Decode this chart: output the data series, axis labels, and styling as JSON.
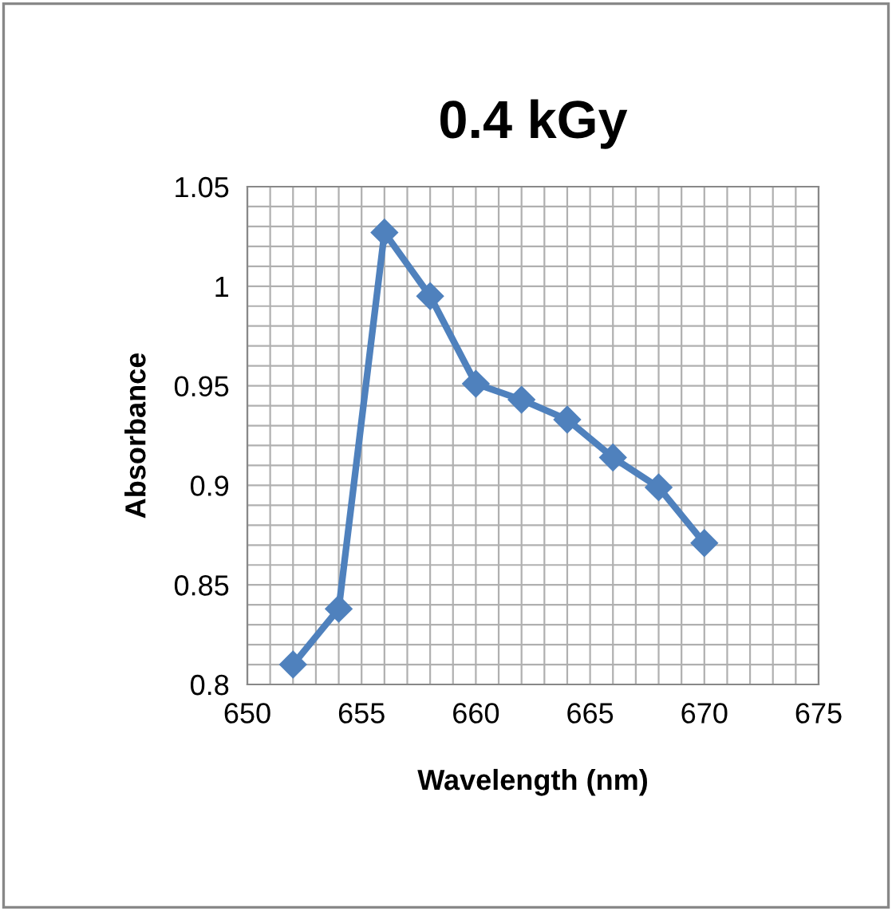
{
  "chart_data": {
    "type": "line",
    "title": "0.4 kGy",
    "xlabel": "Wavelength (nm)",
    "ylabel": "Absorbance",
    "x": [
      652,
      654,
      656,
      658,
      660,
      662,
      664,
      666,
      668,
      670
    ],
    "series": [
      {
        "color": "#4f81bd",
        "values": [
          0.81,
          0.838,
          1.027,
          0.995,
          0.951,
          0.943,
          0.933,
          0.914,
          0.899,
          0.871
        ]
      }
    ],
    "marker": "diamond",
    "line_style": "solid",
    "grid": true,
    "xlim": [
      650,
      675
    ],
    "ylim": [
      0.8,
      1.05
    ],
    "xticks": [
      650,
      {
        "value": 651,
        "label": null
      },
      {
        "value": 652,
        "label": null
      },
      {
        "value": 653,
        "label": null
      },
      {
        "value": 654,
        "label": null
      },
      655,
      {
        "value": 656,
        "label": null
      },
      {
        "value": 657,
        "label": null
      },
      {
        "value": 658,
        "label": null
      },
      {
        "value": 659,
        "label": null
      },
      660,
      {
        "value": 661,
        "label": null
      },
      {
        "value": 662,
        "label": null
      },
      {
        "value": 663,
        "label": null
      },
      {
        "value": 664,
        "label": null
      },
      665,
      {
        "value": 666,
        "label": null
      },
      {
        "value": 667,
        "label": null
      },
      {
        "value": 668,
        "label": null
      },
      {
        "value": 669,
        "label": null
      },
      670,
      {
        "value": 671,
        "label": null
      },
      {
        "value": 672,
        "label": null
      },
      {
        "value": 673,
        "label": null
      },
      {
        "value": 674,
        "label": null
      },
      675
    ],
    "yticks": [
      0.8,
      {
        "value": 0.81,
        "label": null
      },
      {
        "value": 0.82,
        "label": null
      },
      {
        "value": 0.83,
        "label": null
      },
      {
        "value": 0.84,
        "label": null
      },
      0.85,
      {
        "value": 0.86,
        "label": null
      },
      {
        "value": 0.87,
        "label": null
      },
      {
        "value": 0.88,
        "label": null
      },
      {
        "value": 0.89,
        "label": null
      },
      0.9,
      {
        "value": 0.91,
        "label": null
      },
      {
        "value": 0.92,
        "label": null
      },
      {
        "value": 0.93,
        "label": null
      },
      {
        "value": 0.94,
        "label": null
      },
      0.95,
      {
        "value": 0.96,
        "label": null
      },
      {
        "value": 0.97,
        "label": null
      },
      {
        "value": 0.98,
        "label": null
      },
      {
        "value": 0.99,
        "label": null
      },
      1,
      {
        "value": 1.01,
        "label": null
      },
      {
        "value": 1.02,
        "label": null
      },
      {
        "value": 1.03,
        "label": null
      },
      {
        "value": 1.04,
        "label": null
      },
      1.05
    ]
  }
}
